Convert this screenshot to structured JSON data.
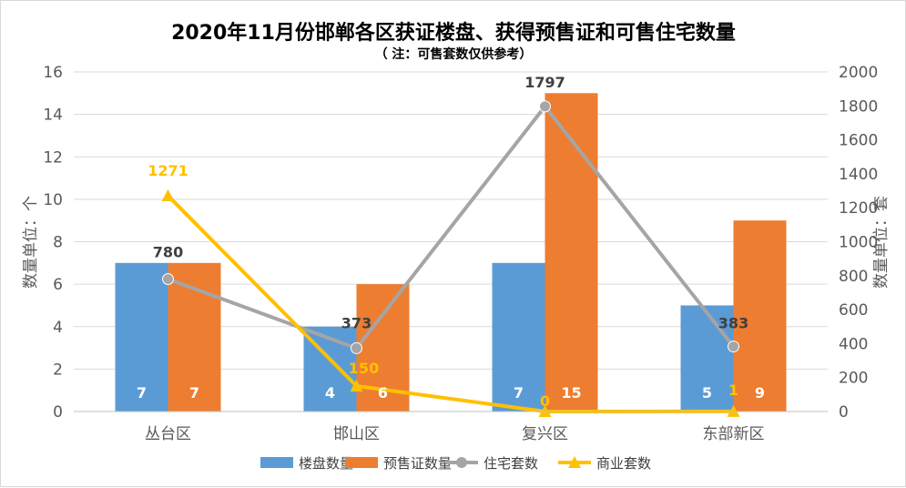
{
  "chart_data": {
    "type": "bar",
    "title": "2020年11月份邯郸各区获证楼盘、获得预售证和可售住宅数量",
    "subtitle": "（ 注：可售套数仅供参考）",
    "categories": [
      "丛台区",
      "邯山区",
      "复兴区",
      "东部新区"
    ],
    "ylabel_left": "数量单位：个",
    "ylabel_right": "数量单位：套",
    "ylim_left": [
      0,
      16
    ],
    "ylim_right": [
      0,
      2000
    ],
    "yticks_left": [
      "0",
      "2",
      "4",
      "6",
      "8",
      "10",
      "12",
      "14",
      "16"
    ],
    "yticks_right": [
      "0",
      "200",
      "400",
      "600",
      "800",
      "1000",
      "1200",
      "1400",
      "1600",
      "1800",
      "2000"
    ],
    "grid": true,
    "legend_position": "bottom",
    "series": [
      {
        "name": "楼盘数量",
        "type": "bar",
        "axis": "left",
        "color": "#5B9BD5",
        "values": [
          7,
          4,
          7,
          5
        ]
      },
      {
        "name": "预售证数量",
        "type": "bar",
        "axis": "left",
        "color": "#ED7D31",
        "values": [
          7,
          6,
          15,
          9
        ]
      },
      {
        "name": "住宅套数",
        "type": "line",
        "axis": "right",
        "color": "#A5A5A5",
        "values": [
          780,
          373,
          1797,
          383
        ]
      },
      {
        "name": "商业套数",
        "type": "line",
        "axis": "right",
        "color": "#FFC000",
        "values": [
          1271,
          150,
          0,
          1
        ]
      }
    ]
  }
}
